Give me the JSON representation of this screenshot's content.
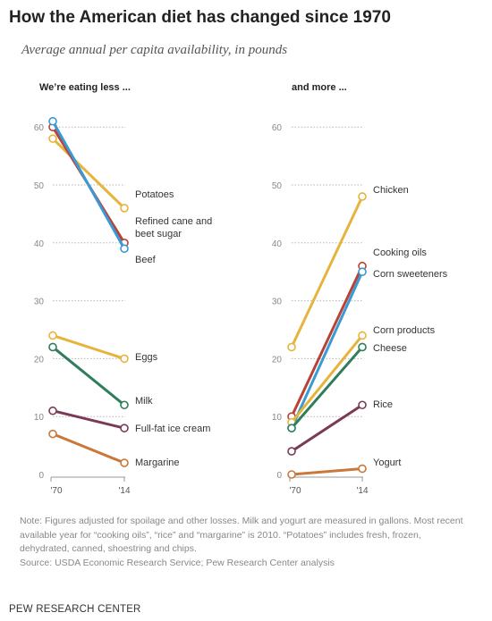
{
  "title": "How the American diet has changed since 1970",
  "subtitle": "Average annual per capita availability, in pounds",
  "note": "Note: Figures adjusted for spoilage and other losses. Milk and yogurt are measured in gallons. Most recent available year for “cooking oils”, “rice” and “margarine” is 2010. “Potatoes” includes fresh, frozen, dehydrated, canned, shoestring and chips.",
  "source": "Source: USDA Economic Research Service; Pew Research Center analysis",
  "brand": "PEW RESEARCH CENTER",
  "chart_data": [
    {
      "type": "line",
      "panel_title": "We’re eating less ...",
      "categories": [
        "'70",
        "'14"
      ],
      "y_ticks": [
        "0",
        "10",
        "20",
        "30",
        "40",
        "50",
        "60"
      ],
      "ylim": [
        0,
        62
      ],
      "series": [
        {
          "name": "Potatoes",
          "color": "#e6b43c",
          "values": [
            58,
            46
          ]
        },
        {
          "name": "Refined cane and beet sugar",
          "color": "#b84234",
          "values": [
            60,
            40
          ]
        },
        {
          "name": "Beef",
          "color": "#3a9ad6",
          "values": [
            61,
            39
          ]
        },
        {
          "name": "Eggs",
          "color": "#e6b43c",
          "values": [
            24,
            20
          ]
        },
        {
          "name": "Milk",
          "color": "#2e7d5b",
          "values": [
            22,
            12
          ]
        },
        {
          "name": "Full-fat ice cream",
          "color": "#7a3a56",
          "values": [
            11,
            8
          ]
        },
        {
          "name": "Margarine",
          "color": "#c9783a",
          "values": [
            7,
            2
          ]
        }
      ]
    },
    {
      "type": "line",
      "panel_title": "and more ...",
      "categories": [
        "'70",
        "'14"
      ],
      "y_ticks": [
        "0",
        "10",
        "20",
        "30",
        "40",
        "50",
        "60"
      ],
      "ylim": [
        0,
        62
      ],
      "series": [
        {
          "name": "Chicken",
          "color": "#e6b43c",
          "values": [
            22,
            48
          ]
        },
        {
          "name": "Cooking oils",
          "color": "#b84234",
          "values": [
            10,
            36
          ]
        },
        {
          "name": "Corn sweeteners",
          "color": "#3a9ad6",
          "values": [
            8,
            35
          ]
        },
        {
          "name": "Corn products",
          "color": "#e6b43c",
          "values": [
            9,
            24
          ]
        },
        {
          "name": "Cheese",
          "color": "#2e7d5b",
          "values": [
            8,
            22
          ]
        },
        {
          "name": "Rice",
          "color": "#7a3a56",
          "values": [
            4,
            12
          ]
        },
        {
          "name": "Yogurt",
          "color": "#c9783a",
          "values": [
            0,
            1
          ]
        }
      ]
    }
  ]
}
